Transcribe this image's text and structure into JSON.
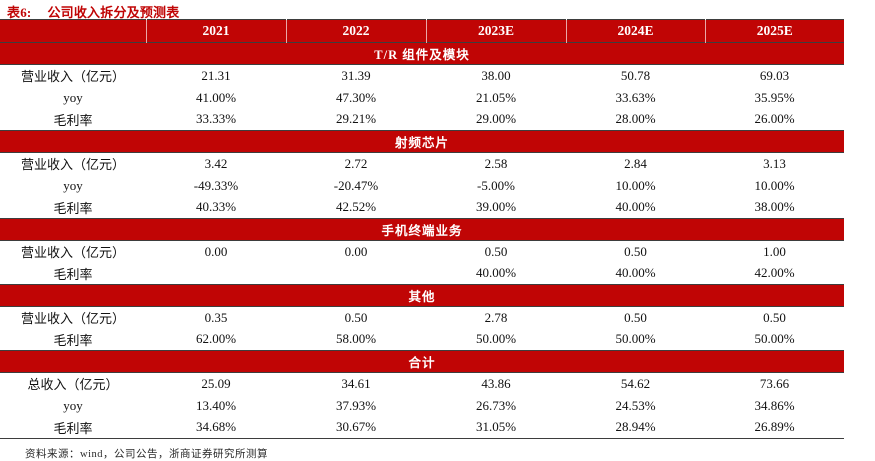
{
  "title": {
    "prefix": "表6:",
    "text": "公司收入拆分及预测表"
  },
  "colors": {
    "accent": "#c00505",
    "header_text": "#ffffff",
    "band_line": "#3d3d3d"
  },
  "table": {
    "columns": [
      "",
      "2021",
      "2022",
      "2023E",
      "2024E",
      "2025E"
    ],
    "sections": [
      {
        "name": "T/R 组件及模块",
        "rows": [
          {
            "label": "营业收入（亿元）",
            "values": [
              "21.31",
              "31.39",
              "38.00",
              "50.78",
              "69.03"
            ]
          },
          {
            "label": "yoy",
            "values": [
              "41.00%",
              "47.30%",
              "21.05%",
              "33.63%",
              "35.95%"
            ]
          },
          {
            "label": "毛利率",
            "values": [
              "33.33%",
              "29.21%",
              "29.00%",
              "28.00%",
              "26.00%"
            ]
          }
        ]
      },
      {
        "name": "射频芯片",
        "rows": [
          {
            "label": "营业收入（亿元）",
            "values": [
              "3.42",
              "2.72",
              "2.58",
              "2.84",
              "3.13"
            ]
          },
          {
            "label": "yoy",
            "values": [
              "-49.33%",
              "-20.47%",
              "-5.00%",
              "10.00%",
              "10.00%"
            ]
          },
          {
            "label": "毛利率",
            "values": [
              "40.33%",
              "42.52%",
              "39.00%",
              "40.00%",
              "38.00%"
            ]
          }
        ]
      },
      {
        "name": "手机终端业务",
        "rows": [
          {
            "label": "营业收入（亿元）",
            "values": [
              "0.00",
              "0.00",
              "0.50",
              "0.50",
              "1.00"
            ]
          },
          {
            "label": "毛利率",
            "values": [
              "",
              "",
              "40.00%",
              "40.00%",
              "42.00%"
            ]
          }
        ]
      },
      {
        "name": "其他",
        "rows": [
          {
            "label": "营业收入（亿元）",
            "values": [
              "0.35",
              "0.50",
              "2.78",
              "0.50",
              "0.50"
            ]
          },
          {
            "label": "毛利率",
            "values": [
              "62.00%",
              "58.00%",
              "50.00%",
              "50.00%",
              "50.00%"
            ]
          }
        ]
      },
      {
        "name": "合计",
        "rows": [
          {
            "label": "总收入（亿元）",
            "values": [
              "25.09",
              "34.61",
              "43.86",
              "54.62",
              "73.66"
            ]
          },
          {
            "label": "yoy",
            "values": [
              "13.40%",
              "37.93%",
              "26.73%",
              "24.53%",
              "34.86%"
            ]
          },
          {
            "label": "毛利率",
            "values": [
              "34.68%",
              "30.67%",
              "31.05%",
              "28.94%",
              "26.89%"
            ]
          }
        ]
      }
    ]
  },
  "source": "资料来源：wind，公司公告，浙商证券研究所测算"
}
